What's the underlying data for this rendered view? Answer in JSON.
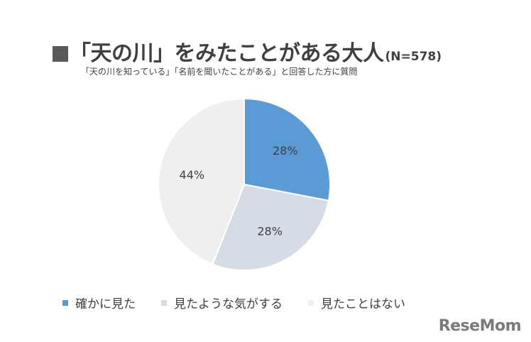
{
  "title": {
    "square": "■",
    "main": "「天の川」をみたことがある大人",
    "n": "(N=578)",
    "subtitle": "「天の川を知っている」「名前を聞いたことがある」と回答した方に質問"
  },
  "chart_data": {
    "type": "pie",
    "slices": [
      {
        "label": "確かに見た",
        "value": 28,
        "display": "28%",
        "color": "#5b9bd5"
      },
      {
        "label": "見たような気がする",
        "value": 28,
        "display": "28%",
        "color": "#d6dce5"
      },
      {
        "label": "見たことはない",
        "value": 44,
        "display": "44%",
        "color": "#efefef"
      }
    ],
    "legend_placement": "bottom"
  },
  "logo": {
    "text": "ReseMom"
  }
}
